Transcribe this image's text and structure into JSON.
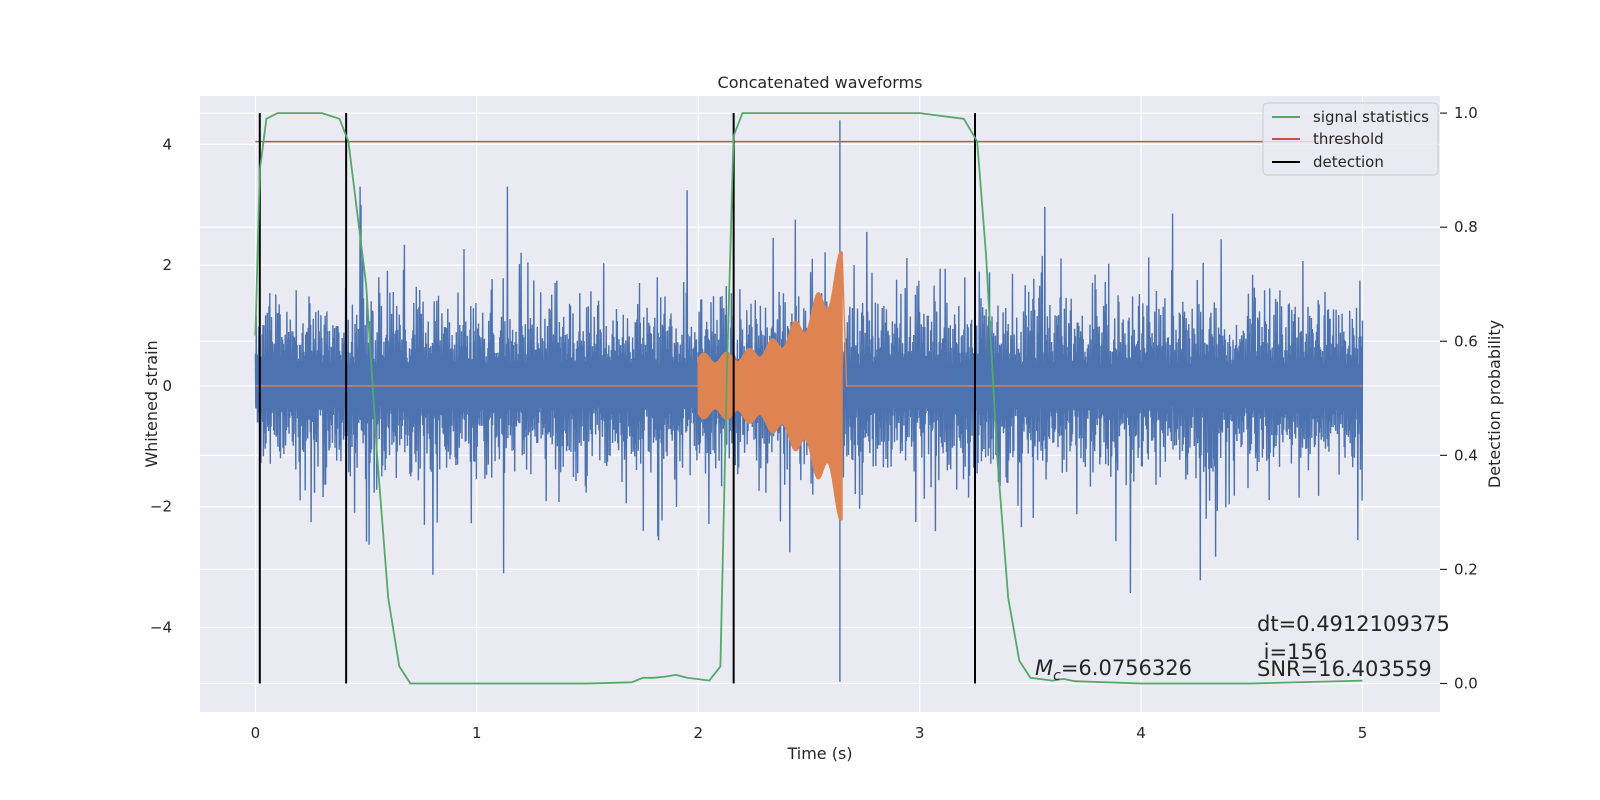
{
  "chart_data": {
    "type": "line",
    "title": "Concatenated waveforms",
    "xlabel": "Time (s)",
    "ylabel": "Whitened strain",
    "ylabel_right": "Detection probability",
    "xlim": [
      -0.25,
      5.35
    ],
    "ylim": [
      -5.4,
      4.8
    ],
    "ylim_right": [
      -0.05,
      1.03
    ],
    "x_ticks": [
      0,
      1,
      2,
      3,
      4,
      5
    ],
    "y_ticks": [
      -4,
      -2,
      0,
      2,
      4
    ],
    "y_right_ticks": [
      0.0,
      0.2,
      0.4,
      0.6,
      0.8,
      1.0
    ],
    "grid": true,
    "legend_position": "upper right",
    "legend": [
      {
        "label": "signal statistics",
        "color": "#55a868"
      },
      {
        "label": "threshold",
        "color": "#c44e52"
      },
      {
        "label": "detection",
        "color": "#000000"
      }
    ],
    "strain": {
      "color": "#4c72b0",
      "x_range": [
        0,
        5
      ],
      "typical_amplitude": 1.3,
      "peak_max": 4.4,
      "peak_min": -4.9
    },
    "injection": {
      "color": "#dd8452",
      "x_start": 2.0,
      "x_merger": 2.65,
      "amplitude_start": 0.55,
      "amplitude_peak": 2.3
    },
    "signal_statistics": {
      "color": "#55a868",
      "x": [
        0,
        0.02,
        0.05,
        0.1,
        0.3,
        0.38,
        0.42,
        0.5,
        0.55,
        0.6,
        0.65,
        0.7,
        1.0,
        1.5,
        1.7,
        1.75,
        1.8,
        1.85,
        1.9,
        1.95,
        2.05,
        2.1,
        2.13,
        2.16,
        2.2,
        2.5,
        3.0,
        3.2,
        3.26,
        3.3,
        3.35,
        3.4,
        3.45,
        3.5,
        3.6,
        3.65,
        3.7,
        4.0,
        4.5,
        5.0
      ],
      "y": [
        0.61,
        0.9,
        0.99,
        1.0,
        1.0,
        0.99,
        0.95,
        0.7,
        0.4,
        0.15,
        0.03,
        0.0,
        0.0,
        0.0,
        0.002,
        0.01,
        0.01,
        0.012,
        0.015,
        0.01,
        0.005,
        0.03,
        0.55,
        0.96,
        1.0,
        1.0,
        1.0,
        0.99,
        0.95,
        0.75,
        0.4,
        0.15,
        0.04,
        0.01,
        0.005,
        0.008,
        0.004,
        0.0,
        0.0,
        0.005
      ]
    },
    "threshold": {
      "value": 0.95,
      "x_range": [
        0,
        5.05
      ]
    },
    "detections": [
      0.02,
      0.41,
      2.16,
      3.25
    ],
    "annotations": {
      "mc_symbol": "M",
      "mc_sub": "c",
      "mc_value": "=6.0756326",
      "dt": "dt=0.4912109375",
      "i": " i=156",
      "snr": "SNR=16.403559"
    }
  }
}
